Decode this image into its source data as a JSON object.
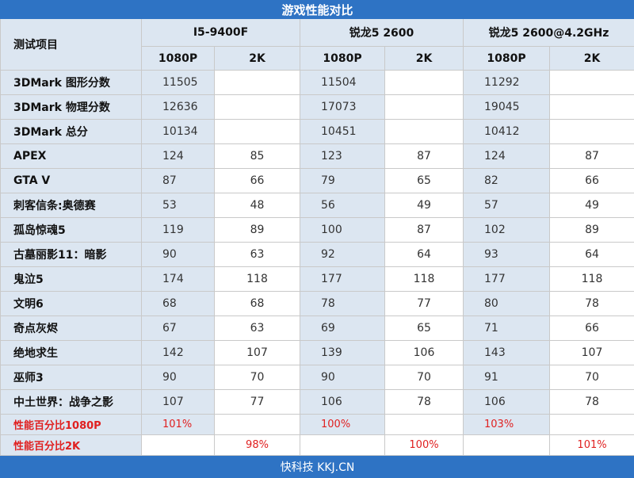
{
  "title": "游戏性能对比",
  "header": {
    "row_label": "测试项目",
    "cpus": [
      "I5-9400F",
      "锐龙5 2600",
      "锐龙5 2600@4.2GHz"
    ],
    "res": [
      "1080P",
      "2K"
    ]
  },
  "rows": [
    {
      "label": "3DMark 图形分数",
      "v": [
        "11505",
        "",
        "11504",
        "",
        "11292",
        ""
      ]
    },
    {
      "label": "3DMark 物理分数",
      "v": [
        "12636",
        "",
        "17073",
        "",
        "19045",
        ""
      ]
    },
    {
      "label": "3DMark 总分",
      "v": [
        "10134",
        "",
        "10451",
        "",
        "10412",
        ""
      ]
    },
    {
      "label": "APEX",
      "v": [
        "124",
        "85",
        "123",
        "87",
        "124",
        "87"
      ]
    },
    {
      "label": "GTA V",
      "v": [
        "87",
        "66",
        "79",
        "65",
        "82",
        "66"
      ]
    },
    {
      "label": "刺客信条:奥德赛",
      "v": [
        "53",
        "48",
        "56",
        "49",
        "57",
        "49"
      ]
    },
    {
      "label": "孤岛惊魂5",
      "v": [
        "119",
        "89",
        "100",
        "87",
        "102",
        "89"
      ]
    },
    {
      "label": "古墓丽影11：暗影",
      "v": [
        "90",
        "63",
        "92",
        "64",
        "93",
        "64"
      ]
    },
    {
      "label": "鬼泣5",
      "v": [
        "174",
        "118",
        "177",
        "118",
        "177",
        "118"
      ]
    },
    {
      "label": "文明6",
      "v": [
        "68",
        "68",
        "78",
        "77",
        "80",
        "78"
      ]
    },
    {
      "label": "奇点灰烬",
      "v": [
        "67",
        "63",
        "69",
        "65",
        "71",
        "66"
      ]
    },
    {
      "label": "绝地求生",
      "v": [
        "142",
        "107",
        "139",
        "106",
        "143",
        "107"
      ]
    },
    {
      "label": "巫师3",
      "v": [
        "90",
        "70",
        "90",
        "70",
        "91",
        "70"
      ]
    },
    {
      "label": "中土世界：战争之影",
      "v": [
        "107",
        "77",
        "106",
        "78",
        "106",
        "78"
      ]
    }
  ],
  "pct_rows": [
    {
      "label": "性能百分比1080P",
      "v": [
        "101%",
        "",
        "100%",
        "",
        "103%",
        ""
      ]
    },
    {
      "label": "性能百分比2K",
      "v": [
        "",
        "98%",
        "",
        "100%",
        "",
        "101%"
      ]
    }
  ],
  "footer": "快科技 KKJ.CN",
  "colors": {
    "title_bg": "#2e73c4",
    "cell_blue": "#dce6f1",
    "pct_red": "#e02020"
  }
}
